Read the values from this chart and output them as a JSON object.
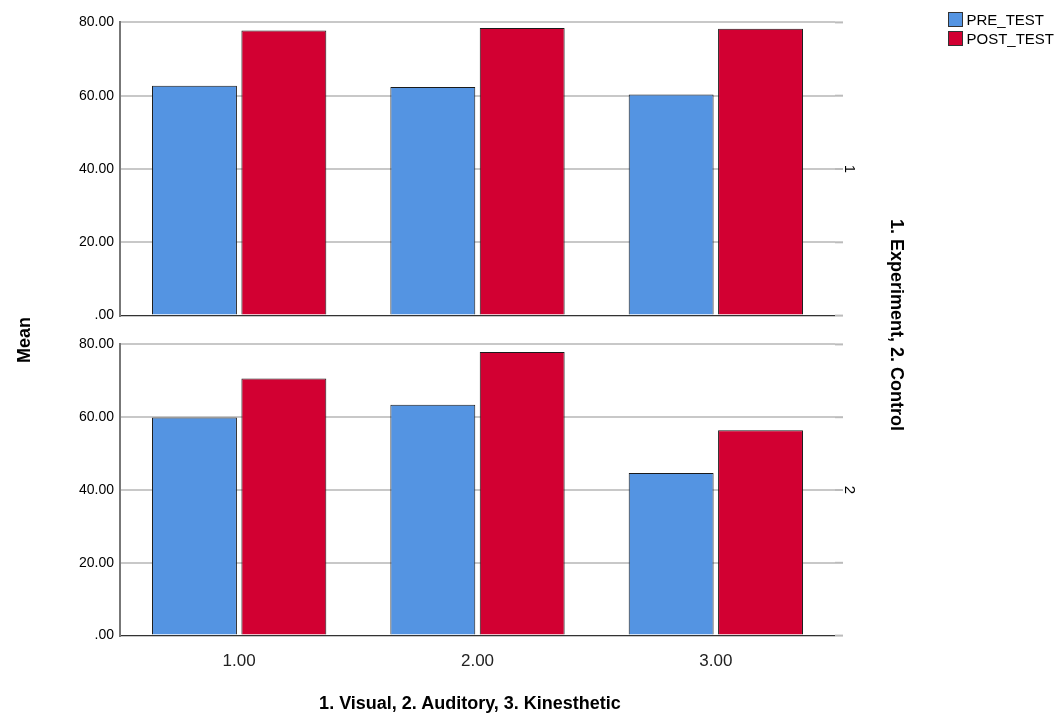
{
  "chart_data": [
    {
      "type": "bar",
      "ylabel": "Mean",
      "y2label": "1. Experiment, 2. Control",
      "categories": [
        "1.00",
        "2.00",
        "3.00"
      ],
      "series": [
        {
          "name": "PRE_TEST",
          "color": "#5494e2",
          "values": [
            62.7,
            62.4,
            60.3
          ]
        },
        {
          "name": "POST_TEST",
          "color": "#d20032",
          "values": [
            77.8,
            78.5,
            78.3
          ]
        }
      ],
      "ylim": [
        0,
        80
      ],
      "yticks": [
        {
          "value": 0,
          "label": ".00"
        },
        {
          "value": 20,
          "label": "20.00"
        },
        {
          "value": 40,
          "label": "40.00"
        },
        {
          "value": 60,
          "label": "60.00"
        },
        {
          "value": 80,
          "label": "80.00"
        }
      ],
      "grid": "y",
      "legend": "top right",
      "tick_labels": "y",
      "annotations": [
        "1"
      ]
    },
    {
      "type": "bar",
      "xlabel": "1. Visual, 2. Auditory, 3. Kinesthetic",
      "categories": [
        "1.00",
        "2.00",
        "3.00"
      ],
      "series": [
        {
          "color": "#5494e2",
          "values": [
            59.9,
            63.4,
            44.7
          ]
        },
        {
          "color": "#d20032",
          "values": [
            70.6,
            77.9,
            56.4
          ]
        }
      ],
      "ylim": [
        0,
        80
      ],
      "yticks": [
        {
          "value": 0,
          "label": ".00"
        },
        {
          "value": 20,
          "label": "20.00"
        },
        {
          "value": 40,
          "label": "40.00"
        },
        {
          "value": 60,
          "label": "60.00"
        },
        {
          "value": 80,
          "label": "80.00"
        }
      ],
      "grid": "y",
      "annotations": [
        "2"
      ]
    }
  ]
}
